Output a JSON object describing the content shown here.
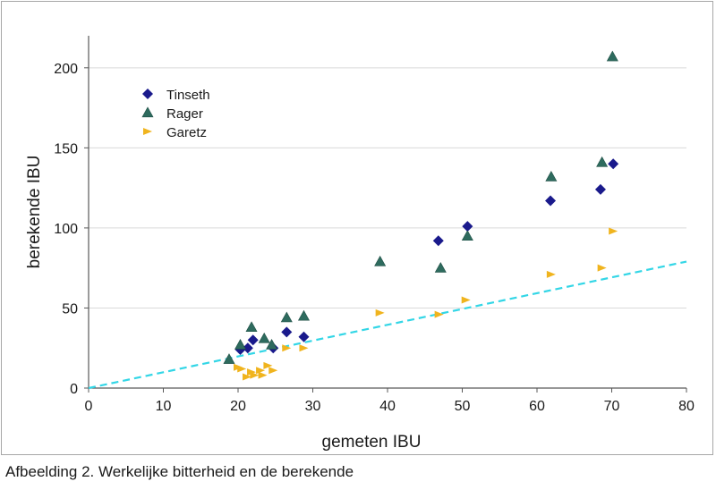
{
  "caption": "Afbeelding 2.  Werkelijke bitterheid en de berekende",
  "chart_data": {
    "type": "scatter",
    "xlabel": "gemeten IBU",
    "ylabel": "berekende IBU",
    "xlim": [
      0,
      80
    ],
    "ylim": [
      0,
      220
    ],
    "xticks": [
      "0",
      "10",
      "20",
      "30",
      "40",
      "50",
      "60",
      "70",
      "80"
    ],
    "yticks": [
      "0",
      "50",
      "100",
      "150",
      "200"
    ],
    "grid": "horizontal",
    "legend_position": "top-left",
    "series": [
      {
        "name": "Tinseth",
        "marker": "diamond",
        "color": "#1a1a8c",
        "points": [
          [
            20.3,
            24
          ],
          [
            21.3,
            25
          ],
          [
            22,
            30
          ],
          [
            24.7,
            25
          ],
          [
            26.5,
            35
          ],
          [
            28.8,
            32
          ],
          [
            46.8,
            92
          ],
          [
            50.7,
            101
          ],
          [
            61.8,
            117
          ],
          [
            68.5,
            124
          ],
          [
            70.2,
            140
          ]
        ]
      },
      {
        "name": "Rager",
        "marker": "triangle",
        "color": "#2e6b5e",
        "points": [
          [
            18.8,
            18
          ],
          [
            20.3,
            27
          ],
          [
            21.8,
            38
          ],
          [
            23.5,
            31
          ],
          [
            24.5,
            27
          ],
          [
            26.5,
            44
          ],
          [
            28.8,
            45
          ],
          [
            39,
            79
          ],
          [
            47.1,
            75
          ],
          [
            50.7,
            95
          ],
          [
            61.9,
            132
          ],
          [
            68.7,
            141
          ],
          [
            70.1,
            207
          ]
        ]
      },
      {
        "name": "Garetz",
        "marker": "triangle-right",
        "color": "#f0b41e",
        "points": [
          [
            20,
            13
          ],
          [
            20.5,
            12
          ],
          [
            21.2,
            7
          ],
          [
            21.8,
            10
          ],
          [
            22.2,
            8
          ],
          [
            23,
            11
          ],
          [
            23.3,
            8
          ],
          [
            24,
            14
          ],
          [
            24.7,
            11
          ],
          [
            26.5,
            25
          ],
          [
            28.8,
            25
          ],
          [
            39,
            47
          ],
          [
            46.9,
            46
          ],
          [
            50.5,
            55
          ],
          [
            61.9,
            71
          ],
          [
            68.7,
            75
          ],
          [
            70.2,
            98
          ]
        ]
      }
    ],
    "reference_line": {
      "style": "dashed",
      "color": "#33d6e6",
      "points": [
        [
          0,
          0
        ],
        [
          80,
          79
        ]
      ]
    }
  }
}
